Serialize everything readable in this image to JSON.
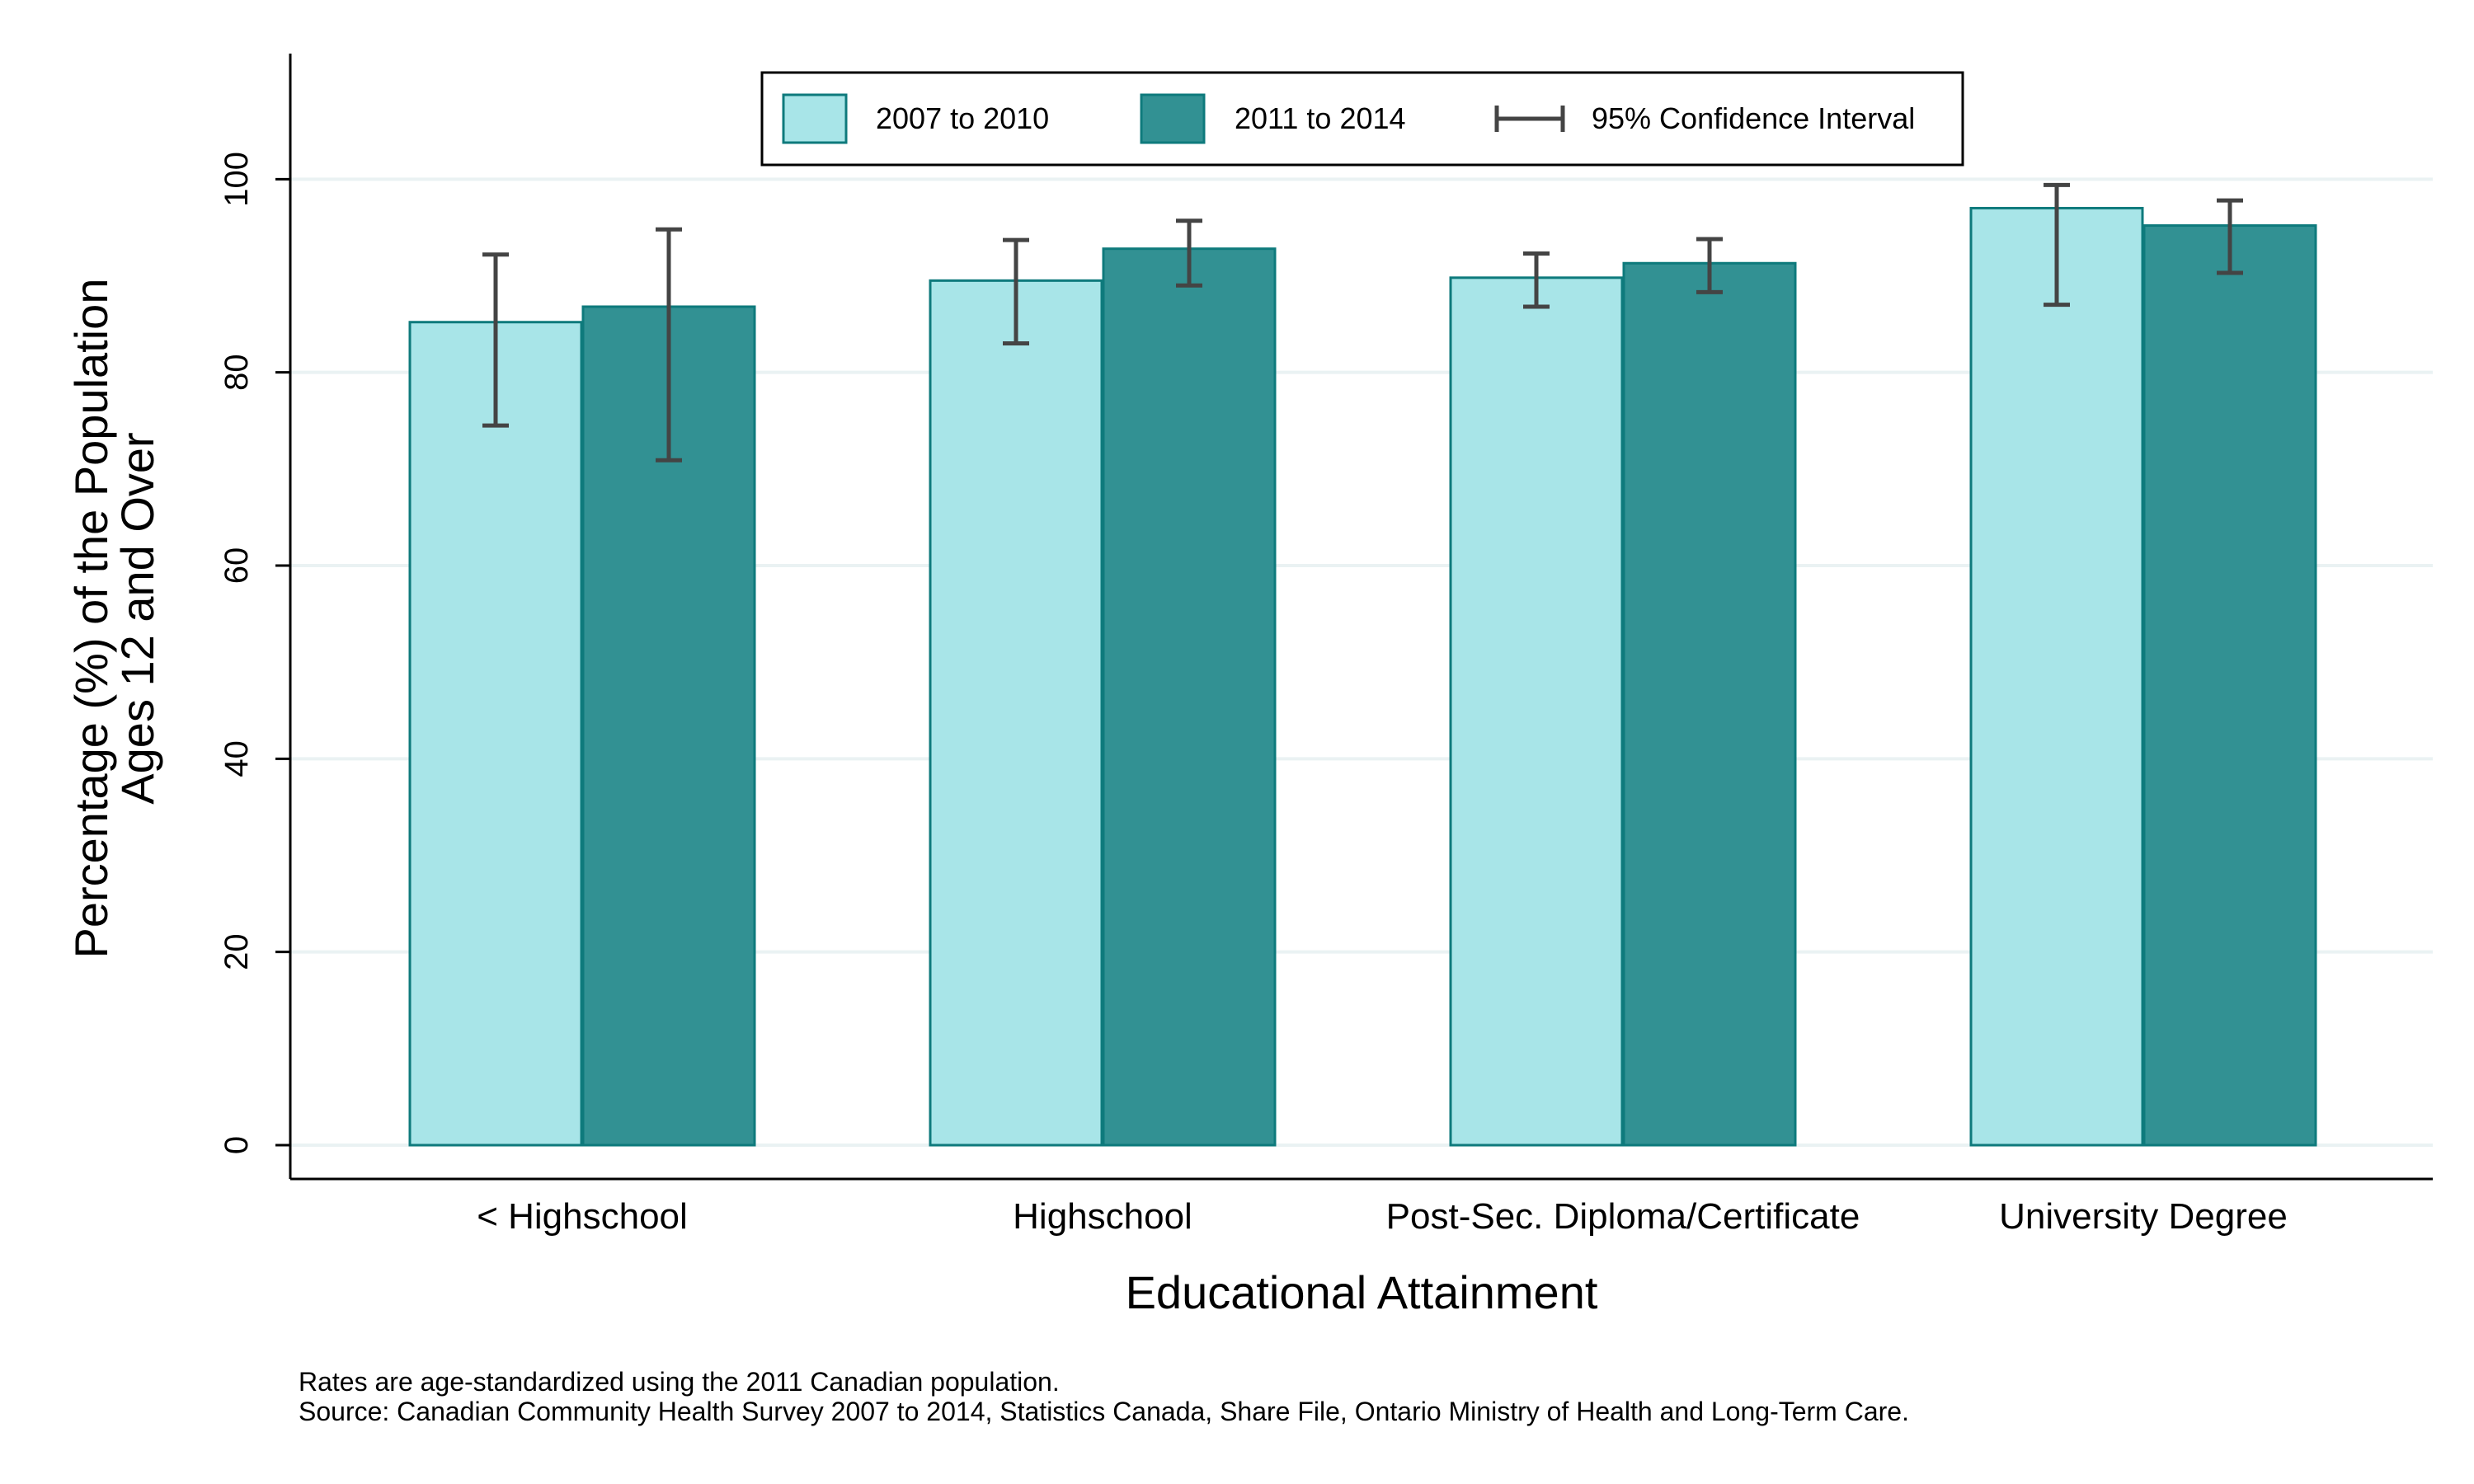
{
  "chart_data": {
    "type": "bar",
    "xlabel": "Educational Attainment",
    "ylabel_lines": [
      "Percentage (%) of the Population",
      "Ages 12 and Over"
    ],
    "categories": [
      "< Highschool",
      "Highschool",
      "Post-Sec. Diploma/Certificate",
      "University Degree"
    ],
    "series": [
      {
        "name": "2007 to 2010",
        "color": "#a8e5e8",
        "values": [
          85.2,
          89.5,
          89.8,
          97.0
        ],
        "ci_low": [
          74.5,
          83.0,
          86.8,
          87.0
        ],
        "ci_high": [
          92.2,
          93.7,
          92.3,
          99.4
        ]
      },
      {
        "name": "2011 to 2014",
        "color": "#329193",
        "values": [
          86.8,
          92.8,
          91.3,
          95.2
        ],
        "ci_low": [
          70.9,
          89.0,
          88.3,
          90.3
        ],
        "ci_high": [
          94.8,
          95.7,
          93.8,
          97.8
        ]
      }
    ],
    "ci_legend_label": "95% Confidence Interval",
    "yticks": [
      0,
      20,
      40,
      60,
      80,
      100
    ],
    "ylim": [
      -3.5,
      113
    ],
    "grid": true,
    "legend_position": "top-center"
  },
  "notes": [
    "Rates are age-standardized using the 2011 Canadian population.",
    "Source: Canadian Community Health Survey 2007 to 2014, Statistics Canada, Share File, Ontario Ministry of Health and Long-Term Care."
  ]
}
